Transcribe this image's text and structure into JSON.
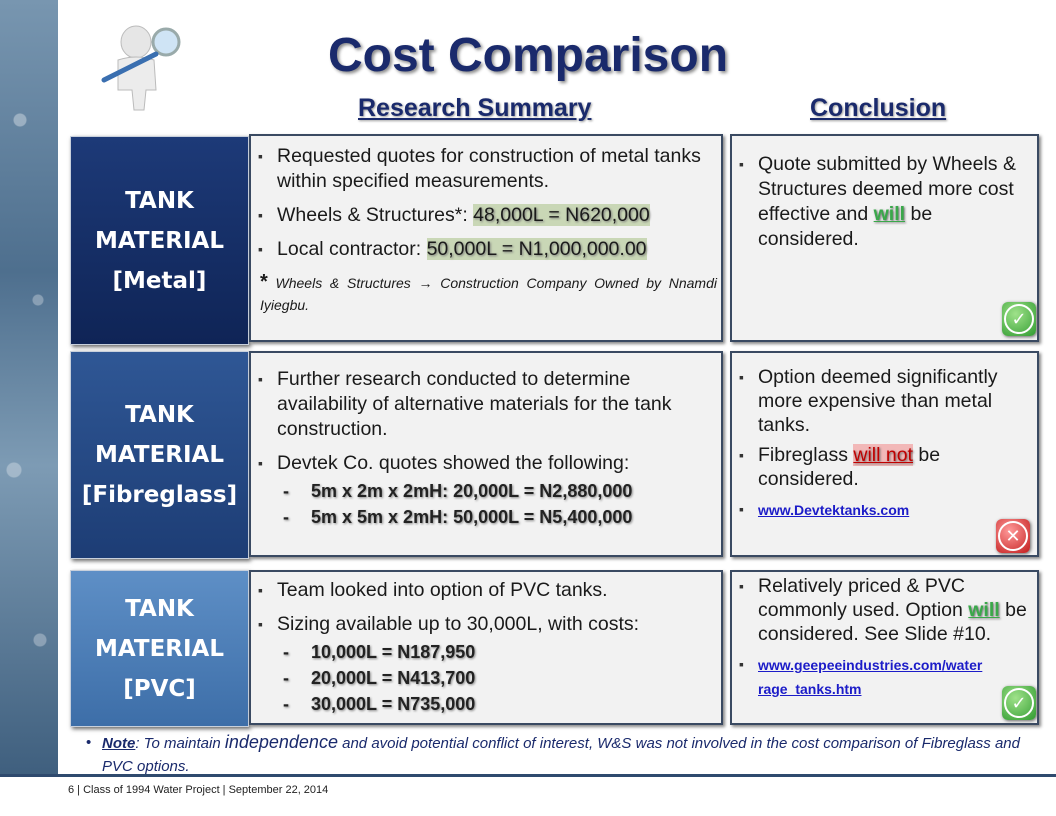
{
  "title": "Cost Comparison",
  "col_research": "Research Summary",
  "col_conclusion": "Conclusion",
  "rows": [
    {
      "tank": [
        "TANK",
        "MATERIAL",
        "[Metal]"
      ],
      "research": {
        "b1": "Requested quotes for construction of metal tanks within specified measurements.",
        "b2_pre": "Wheels & Structures*: ",
        "b2_val": "48,000L = N620,000",
        "b3_pre": "Local contractor: ",
        "b3_val": "50,000L = N1,000,000.00",
        "star": "*",
        "note": " Wheels & Structures → Construction Company Owned by Nnamdi Iyiegbu."
      },
      "conclusion": {
        "pre": "Quote submitted by Wheels & Structures deemed more cost effective and ",
        "emph": "will",
        "post": " be considered.",
        "icon": "check-icon"
      }
    },
    {
      "tank": [
        "TANK",
        "MATERIAL",
        "[Fibreglass]"
      ],
      "research": {
        "b1": "Further research conducted to determine availability of alternative materials for the tank construction.",
        "b2": "Devtek Co. quotes showed the following:",
        "subs": [
          "5m x 2m x 2mH:  20,000L = N2,880,000",
          "5m x 5m x 2mH:  50,000L = N5,400,000"
        ]
      },
      "conclusion": {
        "c1": "Option deemed significantly more expensive than metal tanks.",
        "c2_pre": "Fibreglass ",
        "c2_emph": "will not",
        "c2_post": " be considered.",
        "link": "www.Devtektanks.com",
        "icon": "cross-icon"
      }
    },
    {
      "tank": [
        "TANK",
        "MATERIAL",
        "[PVC]"
      ],
      "research": {
        "b1": "Team looked into option of PVC tanks.",
        "b2": "Sizing available up to 30,000L, with costs:",
        "subs": [
          "10,000L = N187,950",
          "20,000L = N413,700",
          "30,000L = N735,000"
        ]
      },
      "conclusion": {
        "pre": "Relatively priced & PVC commonly used. Option ",
        "emph": "will",
        "post": " be considered. See Slide #10.",
        "link": "www.geepeeindustries.com/water rage_tanks.htm",
        "icon": "check-icon"
      }
    }
  ],
  "note": {
    "label": "Note",
    "t1": ": To maintain ",
    "big": "independence",
    "t2": " and avoid potential conflict of interest, W&S was not involved in the cost comparison of Fibreglass and PVC options."
  },
  "footer": "6   |   Class of 1994 Water Project |   September 22, 2014",
  "colors": {
    "navy": "#1a2a6c",
    "green": "#3aa84a",
    "red": "#c00000"
  }
}
